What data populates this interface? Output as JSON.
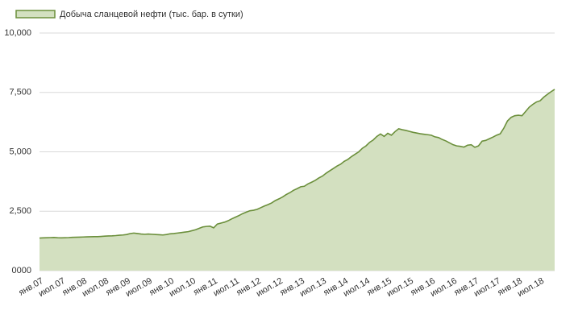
{
  "chart_data": {
    "type": "area",
    "legend_position": "top-left",
    "grid": true,
    "categories": [
      "янв.07",
      null,
      null,
      null,
      null,
      null,
      "июл.07",
      null,
      null,
      null,
      null,
      null,
      "янв.08",
      null,
      null,
      null,
      null,
      null,
      "июл.08",
      null,
      null,
      null,
      null,
      null,
      "янв.09",
      null,
      null,
      null,
      null,
      null,
      "июл.09",
      null,
      null,
      null,
      null,
      null,
      "янв.10",
      null,
      null,
      null,
      null,
      null,
      "июл.10",
      null,
      null,
      null,
      null,
      null,
      "янв.11",
      null,
      null,
      null,
      null,
      null,
      "июл.11",
      null,
      null,
      null,
      null,
      null,
      "янв.12",
      null,
      null,
      null,
      null,
      null,
      "июл.12",
      null,
      null,
      null,
      null,
      null,
      "янв.13",
      null,
      null,
      null,
      null,
      null,
      "июл.13",
      null,
      null,
      null,
      null,
      null,
      "янв.14",
      null,
      null,
      null,
      null,
      null,
      "июл.14",
      null,
      null,
      null,
      null,
      null,
      "янв.15",
      null,
      null,
      null,
      null,
      null,
      "июл.15",
      null,
      null,
      null,
      null,
      null,
      "янв.16",
      null,
      null,
      null,
      null,
      null,
      "июл.16",
      null,
      null,
      null,
      null,
      null,
      "янв.17",
      null,
      null,
      null,
      null,
      null,
      "июл.17",
      null,
      null,
      null,
      null,
      null,
      "янв.18",
      null,
      null,
      null,
      null,
      null,
      "июл.18",
      null,
      null,
      null,
      null
    ],
    "series": [
      {
        "name": "Добыча сланцевой нефти (тыс. бар. в сутки)",
        "color": "#6b8f3b",
        "fill": "#d3e0c0",
        "values": [
          1370,
          1380,
          1385,
          1390,
          1395,
          1385,
          1380,
          1385,
          1390,
          1400,
          1405,
          1410,
          1415,
          1420,
          1425,
          1430,
          1430,
          1440,
          1450,
          1460,
          1465,
          1475,
          1490,
          1500,
          1520,
          1560,
          1580,
          1560,
          1540,
          1530,
          1540,
          1530,
          1520,
          1510,
          1500,
          1520,
          1550,
          1560,
          1580,
          1600,
          1620,
          1640,
          1680,
          1720,
          1780,
          1840,
          1860,
          1870,
          1800,
          1960,
          2000,
          2040,
          2100,
          2180,
          2250,
          2320,
          2400,
          2460,
          2520,
          2540,
          2580,
          2650,
          2720,
          2780,
          2850,
          2950,
          3020,
          3100,
          3200,
          3280,
          3380,
          3450,
          3530,
          3550,
          3650,
          3720,
          3800,
          3900,
          3980,
          4100,
          4200,
          4300,
          4400,
          4480,
          4600,
          4680,
          4800,
          4900,
          5000,
          5150,
          5250,
          5400,
          5500,
          5650,
          5750,
          5650,
          5780,
          5700,
          5850,
          5970,
          5930,
          5900,
          5860,
          5820,
          5790,
          5760,
          5740,
          5720,
          5700,
          5630,
          5600,
          5520,
          5460,
          5380,
          5300,
          5250,
          5230,
          5200,
          5280,
          5300,
          5190,
          5250,
          5450,
          5480,
          5550,
          5620,
          5700,
          5760,
          6000,
          6300,
          6450,
          6520,
          6540,
          6520,
          6700,
          6880,
          7000,
          7100,
          7150,
          7300,
          7420,
          7530,
          7630
        ]
      }
    ],
    "ylim": [
      0,
      10000
    ],
    "yticks": [
      {
        "value": 0,
        "label": "0000"
      },
      {
        "value": 2500,
        "label": "2,500"
      },
      {
        "value": 5000,
        "label": "5,000"
      },
      {
        "value": 7500,
        "label": "7,500"
      },
      {
        "value": 10000,
        "label": "10,000"
      }
    ]
  }
}
